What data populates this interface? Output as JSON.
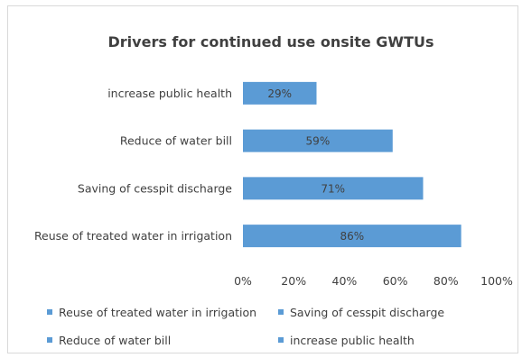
{
  "chart_data": {
    "type": "bar",
    "orientation": "horizontal",
    "title": "Drivers for continued use  onsite GWTUs",
    "categories": [
      "increase public health",
      "Reduce of water bill",
      "Saving of cesspit discharge",
      "Reuse of treated water in irrigation"
    ],
    "values": [
      29,
      59,
      71,
      86
    ],
    "data_labels": [
      "29%",
      "59%",
      "71%",
      "86%"
    ],
    "xlim": [
      0,
      100
    ],
    "x_ticks": [
      "0%",
      "20%",
      "40%",
      "60%",
      "80%",
      "100%"
    ],
    "grid": false,
    "bar_color": "#5b9bd5",
    "legend_position": "bottom",
    "legend": [
      "Reuse of treated water in irrigation",
      "Saving of cesspit discharge",
      "Reduce of water bill",
      "increase public health"
    ]
  }
}
